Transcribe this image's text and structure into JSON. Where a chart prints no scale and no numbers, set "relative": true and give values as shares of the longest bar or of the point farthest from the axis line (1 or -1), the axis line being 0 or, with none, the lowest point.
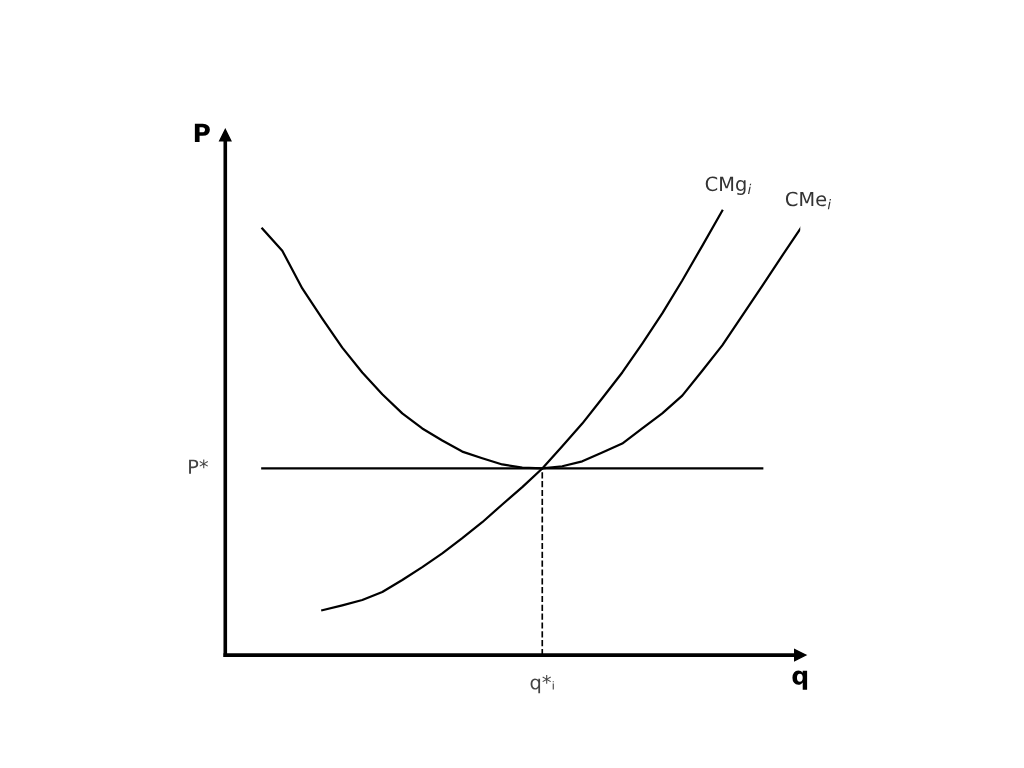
{
  "chart_data": {
    "type": "line",
    "relative": true,
    "xlabel": "q",
    "ylabel": "P",
    "categories": [
      null,
      null,
      null,
      null,
      null,
      null,
      null,
      null,
      null,
      null,
      null,
      null,
      null,
      null,
      null,
      null,
      null,
      null,
      null,
      null,
      null,
      null,
      null,
      null,
      null,
      null,
      null,
      null
    ],
    "series": [
      {
        "name": "CMe$_{i}$",
        "color": "#000000",
        "values": [
          0.96,
          0.91,
          0.825,
          0.757,
          0.692,
          0.636,
          0.587,
          0.544,
          0.51,
          0.483,
          0.458,
          0.443,
          0.429,
          0.422,
          0.42,
          0.425,
          0.436,
          0.456,
          0.476,
          0.51,
          0.544,
          0.584,
          0.64,
          0.697,
          0.764,
          0.831,
          0.899,
          0.966
        ]
      },
      {
        "name": "CMg$_{i}$",
        "color": "#000000",
        "values": [
          null,
          null,
          null,
          0.101,
          0.112,
          0.124,
          0.142,
          0.169,
          0.198,
          0.229,
          0.263,
          0.299,
          0.339,
          0.378,
          0.42,
          0.47,
          0.521,
          0.578,
          0.636,
          0.701,
          0.769,
          0.843,
          0.921,
          1.0,
          null,
          null,
          null,
          null
        ]
      },
      {
        "name": "P*",
        "color": "#000000",
        "values": [
          0.42,
          0.42,
          0.42,
          0.42,
          0.42,
          0.42,
          0.42,
          0.42,
          0.42,
          0.42,
          0.42,
          0.42,
          0.42,
          0.42,
          0.42,
          0.42,
          0.42,
          0.42,
          0.42,
          0.42,
          0.42,
          0.42,
          0.42,
          0.42,
          0.42,
          0.42,
          null,
          null
        ]
      }
    ],
    "annotations": [
      "q*ᵢ"
    ],
    "legend": false
  }
}
